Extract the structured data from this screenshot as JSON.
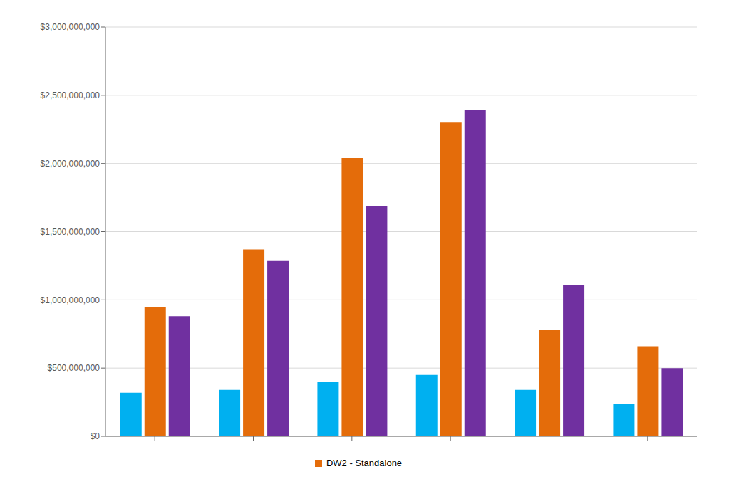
{
  "chart_data": {
    "type": "bar",
    "categories": [
      null,
      null,
      null,
      null,
      null,
      null
    ],
    "series": [
      {
        "color": "#00b0f0",
        "values": [
          320000000,
          340000000,
          400000000,
          450000000,
          340000000,
          240000000
        ]
      },
      {
        "name": "DW2 - Standalone",
        "color": "#e46c0a",
        "values": [
          950000000,
          1370000000,
          2040000000,
          2300000000,
          781250000,
          660000000
        ]
      },
      {
        "color": "#7030a0",
        "values": [
          880000000,
          1290000000,
          1690000000,
          2390000000,
          1110000000,
          500000000
        ]
      }
    ],
    "ylim": [
      0,
      3000000000
    ],
    "yticks": [
      {
        "value": 0,
        "label": "$0"
      },
      {
        "value": 500000000,
        "label": "$500,000,000"
      },
      {
        "value": 1000000000,
        "label": "$1,000,000,000"
      },
      {
        "value": 1500000000,
        "label": "$1,500,000,000"
      },
      {
        "value": 2000000000,
        "label": "$2,000,000,000"
      },
      {
        "value": 2500000000,
        "label": "$2,500,000,000"
      },
      {
        "value": 3000000000,
        "label": "$3,000,000,000"
      }
    ],
    "grid": true,
    "legend": "bottom"
  }
}
